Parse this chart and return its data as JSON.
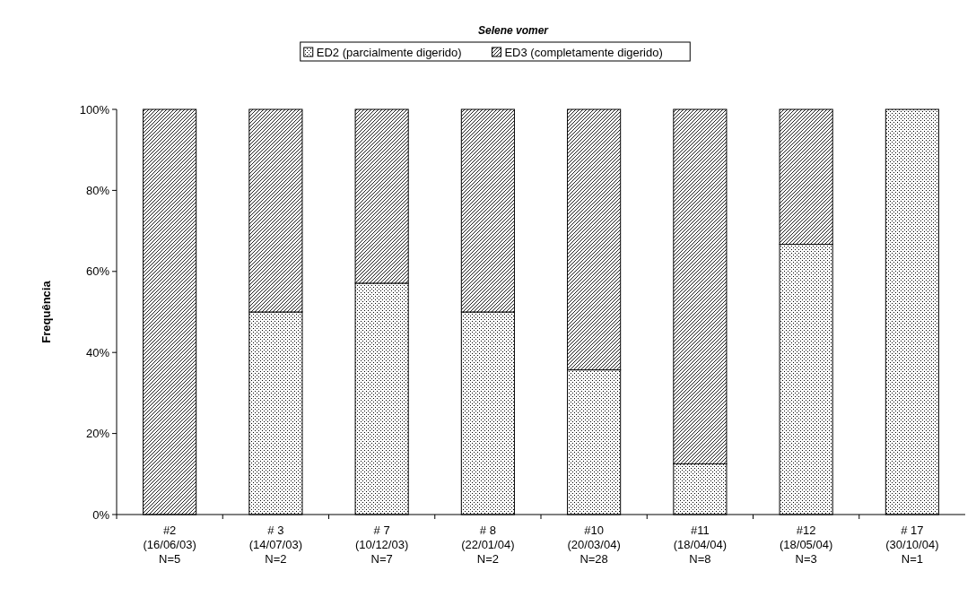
{
  "chart_data": {
    "type": "bar",
    "title": "Selene vomer",
    "ylabel": "Frequência",
    "stacked": true,
    "legend": "top",
    "grid": false,
    "categories": [
      "#2\n(16/06/03)\nN=5",
      "# 3\n(14/07/03)\nN=2",
      "# 7\n(10/12/03)\nN=7",
      "# 8\n(22/01/04)\nN=2",
      "#10\n(20/03/04)\nN=28",
      "#11\n(18/04/04)\nN=8",
      "#12\n(18/05/04)\nN=3",
      "# 17\n(30/10/04)\nN=1"
    ],
    "series": [
      {
        "name": "ED2 (parcialmente digerido)",
        "color": "#000000",
        "values": [
          0,
          50,
          57.1,
          50,
          35.7,
          12.5,
          66.7,
          100
        ]
      },
      {
        "name": "ED3 (completamente digerido)",
        "color": "#000000",
        "values": [
          100,
          50,
          42.9,
          50,
          64.3,
          87.5,
          33.3,
          0
        ]
      }
    ],
    "ylim": [
      0,
      100
    ],
    "yticks": [
      {
        "value": 0,
        "label": "0%"
      },
      {
        "value": 20,
        "label": "20%"
      },
      {
        "value": 40,
        "label": "40%"
      },
      {
        "value": 60,
        "label": "60%"
      },
      {
        "value": 80,
        "label": "80%"
      },
      {
        "value": 100,
        "label": "100%"
      }
    ]
  }
}
